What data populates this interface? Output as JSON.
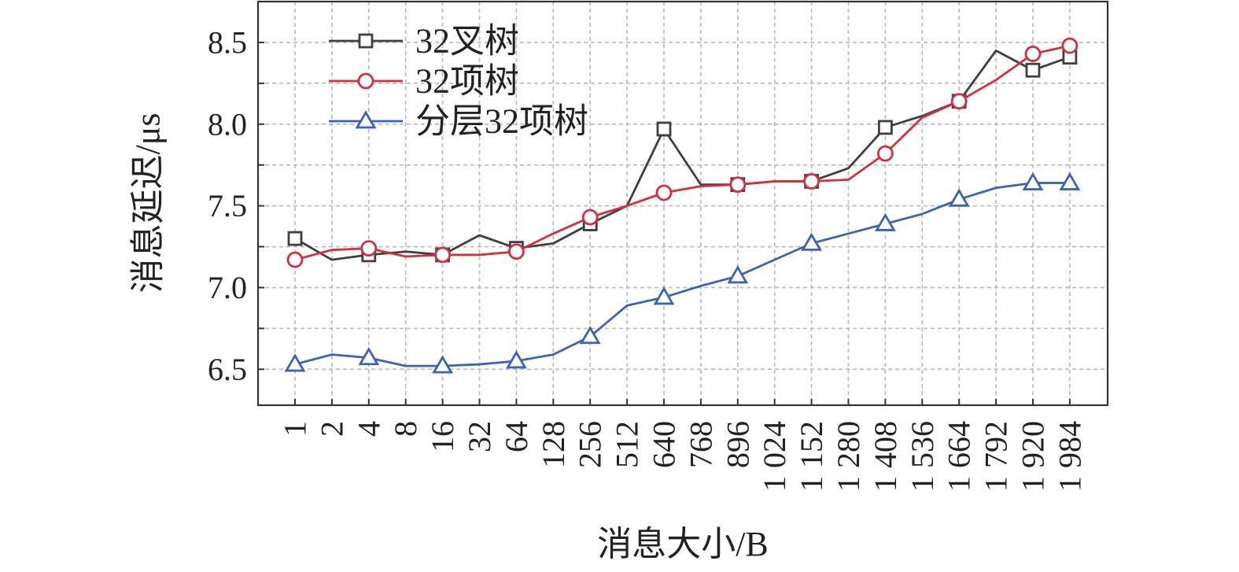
{
  "chart_data": {
    "type": "line",
    "xlabel": "消息大小/B",
    "ylabel": "消息延迟/μs",
    "categories": [
      "1",
      "2",
      "4",
      "8",
      "16",
      "32",
      "64",
      "128",
      "256",
      "512",
      "640",
      "768",
      "896",
      "1 024",
      "1 152",
      "1 280",
      "1 408",
      "1 536",
      "1 664",
      "1 792",
      "1 920",
      "1 984"
    ],
    "ylim": [
      6.28,
      8.75
    ],
    "yticks": [
      "6.5",
      "7.0",
      "7.5",
      "8.0",
      "8.5"
    ],
    "grid": true,
    "legend_position": "top-left",
    "series": [
      {
        "name": "32叉树",
        "color": "#3f3f3f",
        "marker": "square",
        "values": [
          7.3,
          7.17,
          7.2,
          7.22,
          7.2,
          7.32,
          7.24,
          7.27,
          7.39,
          7.5,
          7.97,
          7.63,
          7.63,
          7.65,
          7.65,
          7.73,
          7.98,
          8.05,
          8.14,
          8.45,
          8.33,
          8.41
        ],
        "marker_every": 2
      },
      {
        "name": "32项树",
        "color": "#d42f3c",
        "marker": "circle",
        "values": [
          7.17,
          7.23,
          7.24,
          7.19,
          7.2,
          7.2,
          7.22,
          7.33,
          7.43,
          7.5,
          7.58,
          7.62,
          7.63,
          7.65,
          7.65,
          7.66,
          7.82,
          8.04,
          8.14,
          8.27,
          8.43,
          8.48
        ],
        "marker_every": 2
      },
      {
        "name": "分层32项树",
        "color": "#3c63b5",
        "marker": "triangle",
        "values": [
          6.53,
          6.59,
          6.57,
          6.52,
          6.52,
          6.53,
          6.55,
          6.59,
          6.7,
          6.89,
          6.94,
          7.01,
          7.07,
          7.17,
          7.27,
          7.33,
          7.39,
          7.45,
          7.54,
          7.61,
          7.64,
          7.64
        ],
        "marker_every": 2
      }
    ]
  }
}
